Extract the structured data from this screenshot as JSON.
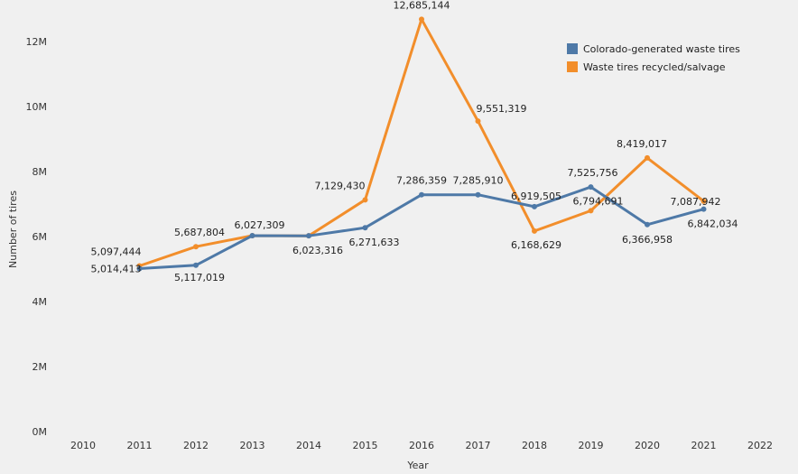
{
  "chart_data": {
    "type": "line",
    "title": "",
    "xlabel": "Year",
    "ylabel": "Number of tires",
    "x": [
      2011,
      2012,
      2013,
      2014,
      2015,
      2016,
      2017,
      2018,
      2019,
      2020,
      2021
    ],
    "xlim": [
      2010,
      2022
    ],
    "x_ticks": [
      "2010",
      "2011",
      "2012",
      "2013",
      "2014",
      "2015",
      "2016",
      "2017",
      "2018",
      "2019",
      "2020",
      "2021",
      "2022"
    ],
    "ylim": [
      0,
      13000000
    ],
    "y_ticks": [
      {
        "value": 0,
        "label": "0M"
      },
      {
        "value": 2000000,
        "label": "2M"
      },
      {
        "value": 4000000,
        "label": "4M"
      },
      {
        "value": 6000000,
        "label": "6M"
      },
      {
        "value": 8000000,
        "label": "8M"
      },
      {
        "value": 10000000,
        "label": "10M"
      },
      {
        "value": 12000000,
        "label": "12M"
      }
    ],
    "grid": false,
    "legend_position": "top-right",
    "series": [
      {
        "name": "Colorado-generated waste tires",
        "color": "#4e79a7",
        "values": [
          5014413,
          5117019,
          6027309,
          6023316,
          6271633,
          7286359,
          7285910,
          6919505,
          7525756,
          6366958,
          6842034
        ],
        "labels": [
          "5,014,413",
          "5,117,019",
          "6,027,309",
          "6,023,316",
          "6,271,633",
          "7,286,359",
          "7,285,910",
          "6,919,505",
          "7,525,756",
          "6,366,958",
          "6,842,034"
        ]
      },
      {
        "name": "Waste tires recycled/salvage",
        "color": "#f28e2b",
        "values": [
          5097444,
          5687804,
          6027309,
          6023316,
          7129430,
          12685144,
          9551319,
          6168629,
          6794691,
          8419017,
          7087942
        ],
        "labels": [
          "5,097,444",
          "5,687,804",
          "",
          "",
          "7,129,430",
          "12,685,144",
          "9,551,319",
          "6,168,629",
          "6,794,691",
          "8,419,017",
          "7,087,942"
        ]
      }
    ]
  }
}
